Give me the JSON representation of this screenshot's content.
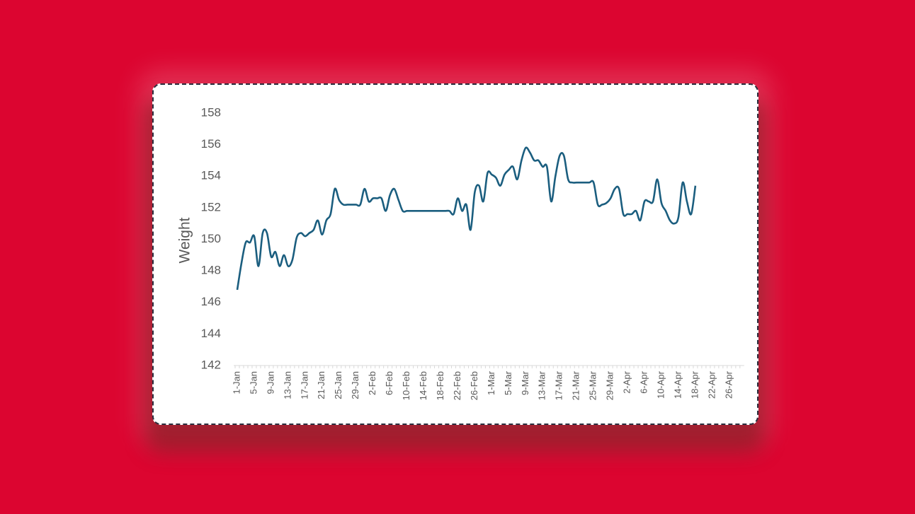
{
  "chart_data": {
    "type": "line",
    "y_label": "Weight",
    "categories": [
      "1-Jan",
      null,
      null,
      null,
      "5-Jan",
      null,
      null,
      null,
      "9-Jan",
      null,
      null,
      null,
      "13-Jan",
      null,
      null,
      null,
      "17-Jan",
      null,
      null,
      null,
      "21-Jan",
      null,
      null,
      null,
      "25-Jan",
      null,
      null,
      null,
      "29-Jan",
      null,
      null,
      null,
      "2-Feb",
      null,
      null,
      null,
      "6-Feb",
      null,
      null,
      null,
      "10-Feb",
      null,
      null,
      null,
      "14-Feb",
      null,
      null,
      null,
      "18-Feb",
      null,
      null,
      null,
      "22-Feb",
      null,
      null,
      null,
      "26-Feb",
      null,
      null,
      null,
      "1-Mar",
      null,
      null,
      null,
      "5-Mar",
      null,
      null,
      null,
      "9-Mar",
      null,
      null,
      null,
      "13-Mar",
      null,
      null,
      null,
      "17-Mar",
      null,
      null,
      null,
      "21-Mar",
      null,
      null,
      null,
      "25-Mar",
      null,
      null,
      null,
      "29-Mar",
      null,
      null,
      null,
      "2-Apr",
      null,
      null,
      null,
      "6-Apr",
      null,
      null,
      null,
      "10-Apr",
      null,
      null,
      null,
      "14-Apr",
      null,
      null,
      null,
      "18-Apr",
      null,
      null,
      null,
      "22-Apr",
      null,
      null,
      null,
      "26-Apr",
      null,
      null,
      null
    ],
    "series": [
      {
        "name": "Weight",
        "color": "#1b5e7f",
        "values": [
          146.8,
          148.5,
          149.8,
          149.8,
          150.2,
          148.3,
          150.4,
          150.4,
          148.9,
          149.2,
          148.3,
          149.0,
          148.3,
          148.7,
          150.1,
          150.4,
          150.2,
          150.4,
          150.6,
          151.2,
          150.3,
          151.2,
          151.6,
          153.2,
          152.5,
          152.2,
          152.2,
          152.2,
          152.2,
          152.2,
          153.2,
          152.4,
          152.6,
          152.6,
          152.6,
          151.8,
          152.8,
          153.2,
          152.5,
          151.8,
          151.8,
          151.8,
          151.8,
          151.8,
          151.8,
          151.8,
          151.8,
          151.8,
          151.8,
          151.8,
          151.8,
          151.6,
          152.6,
          151.8,
          152.2,
          150.6,
          153.0,
          153.4,
          152.4,
          154.2,
          154.1,
          153.9,
          153.4,
          154.1,
          154.4,
          154.6,
          153.8,
          155.0,
          155.8,
          155.5,
          155.0,
          155.0,
          154.6,
          154.6,
          152.4,
          154.0,
          155.3,
          155.3,
          153.8,
          153.6,
          153.6,
          153.6,
          153.6,
          153.6,
          153.6,
          152.2,
          152.2,
          152.3,
          152.6,
          153.2,
          153.2,
          151.6,
          151.6,
          151.6,
          151.8,
          151.2,
          152.4,
          152.4,
          152.4,
          153.8,
          152.3,
          151.8,
          151.2,
          151.0,
          151.4,
          153.6,
          152.4,
          151.6,
          153.4,
          null,
          null,
          null,
          null,
          null,
          null,
          null,
          null,
          null,
          null,
          null
        ]
      }
    ],
    "ylim": [
      142,
      158
    ],
    "yticks": [
      142,
      144,
      146,
      148,
      150,
      152,
      154,
      156,
      158
    ],
    "grid": false
  }
}
